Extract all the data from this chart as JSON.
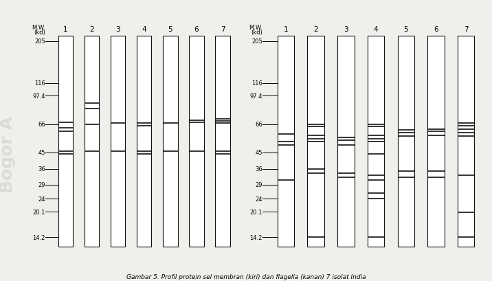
{
  "title": "Gambar 5. Profil protein sel membran (kiri) dan flagella (kanan) 7 isolat India",
  "mw_labels": [
    "205",
    "116",
    "97.4",
    "66",
    "45",
    "36",
    "29",
    "24",
    "20.1",
    "14.2"
  ],
  "mw_values": [
    205,
    116,
    97.4,
    66,
    45,
    36,
    29,
    24,
    20.1,
    14.2
  ],
  "left_panel": {
    "lane_labels": [
      "1",
      "2",
      "3",
      "4",
      "5",
      "6",
      "7"
    ],
    "bands": {
      "1": [
        68,
        63,
        60,
        46,
        44
      ],
      "2": [
        88,
        82,
        66,
        46
      ],
      "3": [
        67,
        46
      ],
      "4": [
        67,
        65,
        46,
        44
      ],
      "5": [
        67,
        46
      ],
      "6": [
        70,
        68,
        46
      ],
      "7": [
        71,
        69,
        67,
        46,
        44
      ]
    }
  },
  "right_panel": {
    "lane_labels": [
      "1",
      "2",
      "3",
      "4",
      "5",
      "6",
      "7"
    ],
    "bands": {
      "1": [
        58,
        52,
        50,
        31
      ],
      "2": [
        66,
        64,
        57,
        54,
        52,
        36,
        34,
        14.2
      ],
      "3": [
        55,
        53,
        50,
        34,
        32
      ],
      "4": [
        66,
        64,
        57,
        54,
        52,
        44,
        33,
        31,
        26,
        24,
        14.2
      ],
      "5": [
        61,
        59,
        56,
        35,
        32
      ],
      "6": [
        62,
        60,
        57,
        35,
        32
      ],
      "7": [
        67,
        65,
        62,
        59,
        56,
        33,
        20,
        14.2
      ]
    }
  },
  "bg_color": "#f0efec",
  "lane_bg": "#ffffff",
  "band_color": "#111111",
  "lane_color": "#111111",
  "band_linewidth": 1.2,
  "lane_linewidth": 0.8
}
